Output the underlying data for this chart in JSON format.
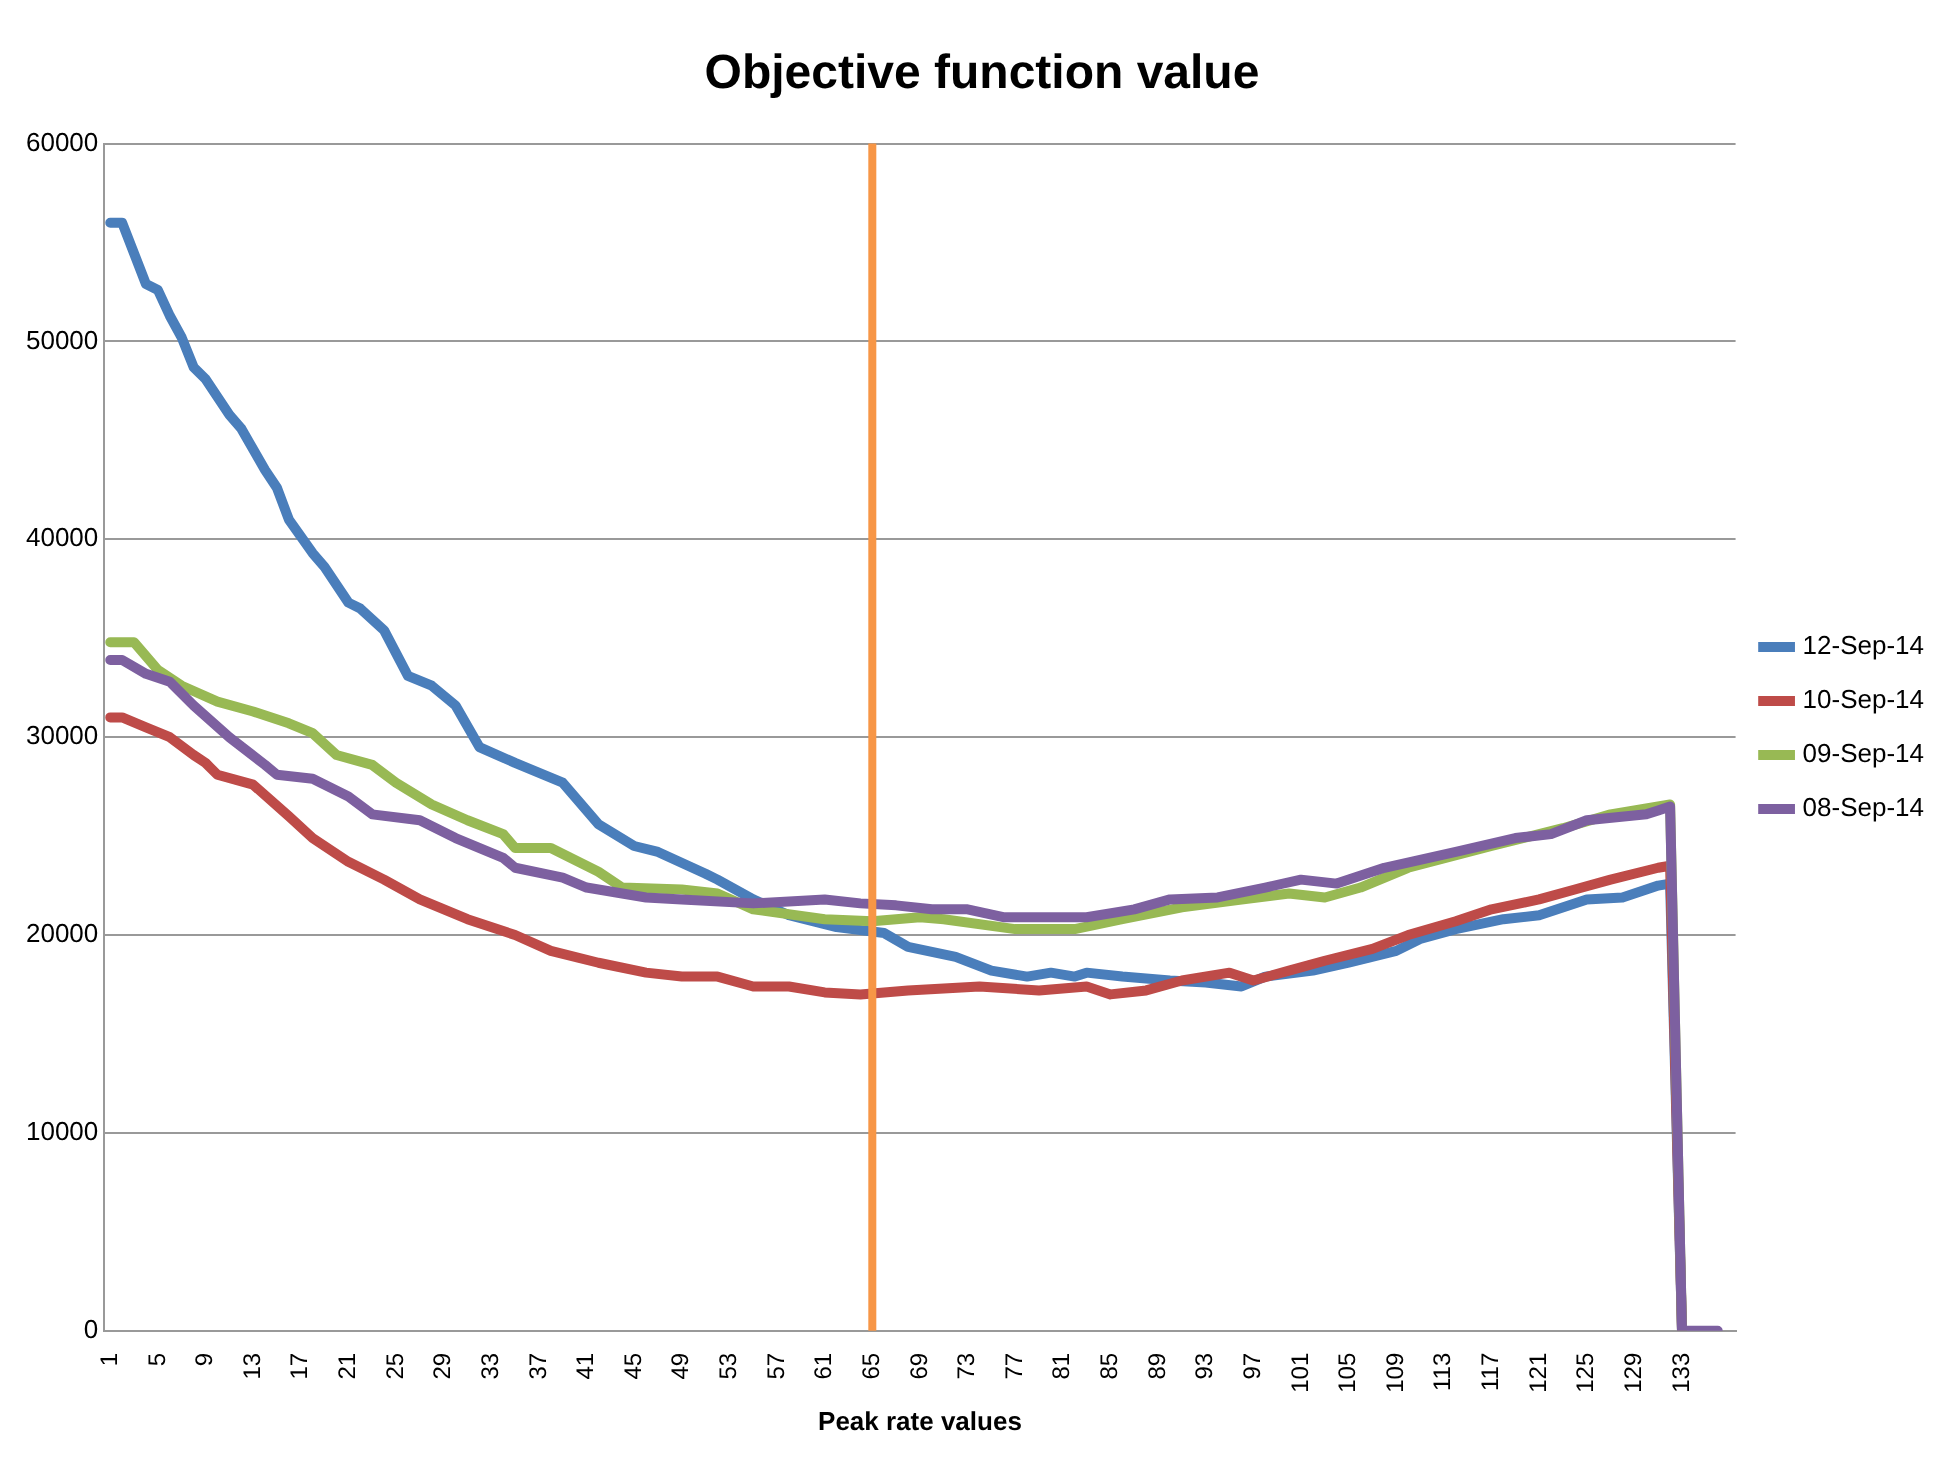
{
  "chart_data": {
    "type": "line",
    "title": "Objective function value",
    "xlabel": "Peak rate values",
    "xlim": [
      0.5,
      137.5
    ],
    "xticks": [
      1,
      5,
      9,
      13,
      17,
      21,
      25,
      29,
      33,
      37,
      41,
      45,
      49,
      53,
      57,
      61,
      65,
      69,
      73,
      77,
      81,
      85,
      89,
      93,
      97,
      101,
      105,
      109,
      113,
      117,
      121,
      125,
      129,
      133
    ],
    "ylim": [
      0,
      60000
    ],
    "yticks": [
      0,
      10000,
      20000,
      30000,
      40000,
      50000,
      60000
    ],
    "grid": "y",
    "legend": "right",
    "marker": "none",
    "line_style": "solid",
    "ref_lines": [
      {
        "axis": "x",
        "value": 65,
        "color": "#f79646"
      }
    ],
    "series": [
      {
        "name": "12-Sep-14",
        "color": "#4a7ebb",
        "x": [
          1,
          2,
          4,
          5,
          6,
          7,
          8,
          9,
          11,
          12,
          14,
          15,
          16,
          18,
          19,
          21,
          22,
          24,
          26,
          28,
          30,
          32,
          35,
          39,
          42,
          45,
          47,
          51,
          52,
          55,
          58,
          62,
          66,
          68,
          72,
          75,
          78,
          80,
          82,
          83,
          86,
          90,
          93,
          96,
          98,
          102,
          105,
          109,
          111,
          114,
          118,
          121,
          125,
          128,
          131,
          132,
          133
        ],
        "values": [
          56000,
          56000,
          52900,
          52600,
          51300,
          50200,
          48700,
          48100,
          46300,
          45600,
          43500,
          42600,
          41000,
          39300,
          38600,
          36800,
          36500,
          35400,
          33100,
          32600,
          31600,
          29500,
          28700,
          27700,
          25600,
          24500,
          24200,
          23100,
          22800,
          21800,
          21000,
          20400,
          20100,
          19400,
          18900,
          18200,
          17900,
          18100,
          17900,
          18100,
          17900,
          17700,
          17600,
          17400,
          17900,
          18200,
          18600,
          19200,
          19800,
          20300,
          20800,
          21000,
          21800,
          21900,
          22500,
          22600,
          0
        ]
      },
      {
        "name": "10-Sep-14",
        "color": "#be4b48",
        "x": [
          1,
          2,
          4,
          6,
          8,
          9,
          10,
          13,
          16,
          18,
          21,
          24,
          27,
          31,
          35,
          38,
          42,
          46,
          49,
          52,
          55,
          58,
          61,
          64,
          68,
          74,
          79,
          83,
          85,
          88,
          91,
          95,
          97,
          100,
          103,
          107,
          110,
          114,
          117,
          121,
          124,
          127,
          131,
          132,
          133
        ],
        "values": [
          31000,
          31000,
          30500,
          30000,
          29100,
          28700,
          28100,
          27600,
          26000,
          24900,
          23700,
          22800,
          21800,
          20800,
          20000,
          19200,
          18600,
          18100,
          17900,
          17900,
          17400,
          17400,
          17100,
          17000,
          17200,
          17400,
          17200,
          17400,
          17000,
          17200,
          17700,
          18100,
          17700,
          18200,
          18700,
          19300,
          20000,
          20700,
          21300,
          21800,
          22300,
          22800,
          23400,
          23500,
          0
        ]
      },
      {
        "name": "09-Sep-14",
        "color": "#98b954",
        "x": [
          1,
          3,
          5,
          7,
          10,
          13,
          16,
          18,
          20,
          23,
          25,
          28,
          31,
          34,
          35,
          38,
          42,
          44,
          49,
          52,
          55,
          61,
          65,
          69,
          71,
          77,
          82,
          86,
          91,
          96,
          100,
          103,
          106,
          110,
          117,
          123,
          127,
          132,
          133
        ],
        "values": [
          34800,
          34800,
          33400,
          32600,
          31800,
          31300,
          30700,
          30200,
          29100,
          28600,
          27700,
          26600,
          25800,
          25100,
          24400,
          24400,
          23200,
          22400,
          22300,
          22100,
          21300,
          20800,
          20700,
          20900,
          20800,
          20300,
          20300,
          20800,
          21400,
          21800,
          22100,
          21900,
          22400,
          23400,
          24500,
          25400,
          26100,
          26600,
          0
        ]
      },
      {
        "name": "08-Sep-14",
        "color": "#7d60a0",
        "x": [
          1,
          2,
          4,
          6,
          8,
          11,
          14,
          15,
          18,
          21,
          23,
          27,
          30,
          34,
          35,
          39,
          41,
          46,
          49,
          55,
          61,
          64,
          67,
          70,
          73,
          76,
          83,
          87,
          90,
          94,
          98,
          101,
          104,
          108,
          114,
          119,
          122,
          125,
          130,
          131,
          132,
          133,
          134,
          135,
          136
        ],
        "values": [
          33900,
          33900,
          33200,
          32800,
          31600,
          30000,
          28600,
          28100,
          27900,
          27000,
          26100,
          25800,
          24900,
          23900,
          23400,
          22900,
          22400,
          21900,
          21800,
          21600,
          21800,
          21600,
          21500,
          21300,
          21300,
          20900,
          20900,
          21300,
          21800,
          21900,
          22400,
          22800,
          22600,
          23400,
          24200,
          24900,
          25100,
          25800,
          26100,
          26300,
          26500,
          0,
          0,
          0,
          0
        ]
      }
    ]
  }
}
